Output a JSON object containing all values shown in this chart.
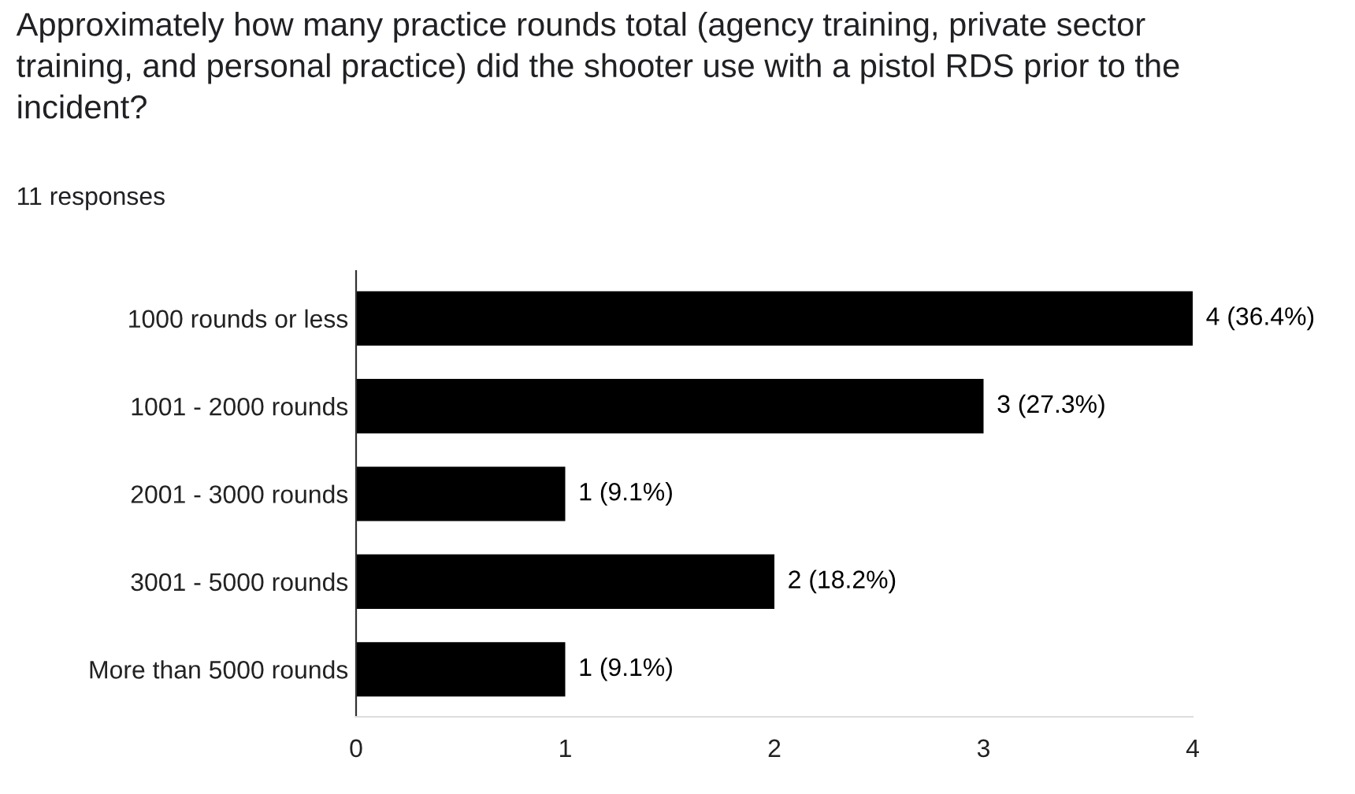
{
  "chart_data": {
    "type": "bar",
    "orientation": "horizontal",
    "title": "Approximately how many practice rounds total (agency training, private sector training, and personal practice) did the shooter use with a pistol RDS prior to the incident?",
    "subtitle": "11 responses",
    "categories": [
      "1000 rounds or less",
      "1001 - 2000 rounds",
      "2001 - 3000 rounds",
      "3001 - 5000 rounds",
      "More than 5000 rounds"
    ],
    "values": [
      4,
      3,
      1,
      2,
      1
    ],
    "color": "#000000",
    "value_labels": [
      "4 (36.4%)",
      "3 (27.3%)",
      "1 (9.1%)",
      "2 (18.2%)",
      "1 (9.1%)"
    ],
    "xlim": [
      0,
      4
    ],
    "xticks": [
      0,
      1,
      2,
      3,
      4
    ],
    "grid": false,
    "legend": false
  }
}
